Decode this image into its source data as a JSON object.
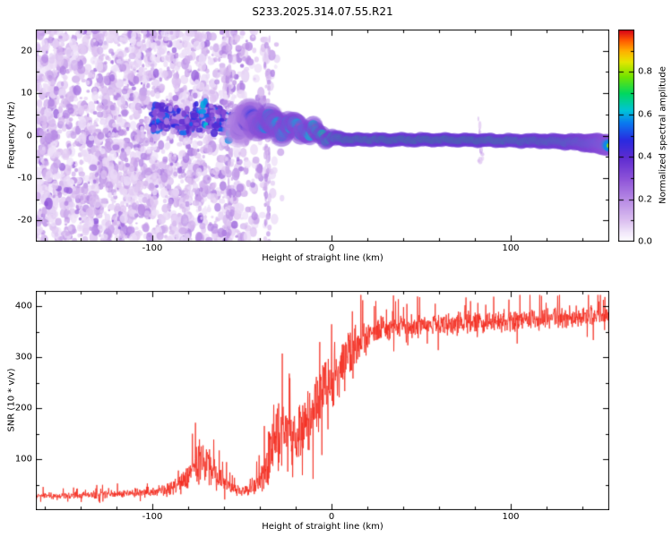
{
  "page": {
    "title": "S233.2025.314.07.55.R21"
  },
  "chart_data": [
    {
      "type": "heatmap",
      "panel": "spectrogram",
      "xlabel": "Height of straight line (km)",
      "ylabel": "Frequency (Hz)",
      "xlim": [
        -165,
        155
      ],
      "ylim": [
        -25,
        25
      ],
      "xticks": [
        -100,
        0,
        100
      ],
      "xtick_labels": [
        "-100",
        "0",
        "100"
      ],
      "yticks": [
        -20,
        -10,
        0,
        10,
        20
      ],
      "ytick_labels": [
        "-20",
        "-10",
        "0",
        "10",
        "20"
      ],
      "colorbar": {
        "label": "Normalized spectral amplitude",
        "range": [
          0,
          1
        ],
        "ticks": [
          0,
          0.2,
          0.4,
          0.6,
          0.8
        ],
        "tick_labels": [
          "0.0",
          "0.2",
          "0.4",
          "0.6",
          "0.8"
        ]
      },
      "colormap_stops": [
        [
          0.0,
          "#ffffff"
        ],
        [
          0.04,
          "#f3eafb"
        ],
        [
          0.1,
          "#dcc0f0"
        ],
        [
          0.2,
          "#b78ae4"
        ],
        [
          0.3,
          "#8d52d8"
        ],
        [
          0.4,
          "#5c2bd0"
        ],
        [
          0.48,
          "#2a2ae0"
        ],
        [
          0.56,
          "#0a78f0"
        ],
        [
          0.62,
          "#00c4d8"
        ],
        [
          0.7,
          "#00d860"
        ],
        [
          0.78,
          "#72e400"
        ],
        [
          0.85,
          "#e6e600"
        ],
        [
          0.9,
          "#ffb000"
        ],
        [
          0.95,
          "#ff5a00"
        ],
        [
          1.0,
          "#d80018"
        ]
      ],
      "noise_field": {
        "x_min": -165,
        "x_max": -25,
        "f_min": -25,
        "f_max": 25,
        "max_amplitude": 0.33
      },
      "streaks": [
        {
          "x": -57,
          "f_min": -25,
          "f_max": 25
        },
        {
          "x": -36,
          "f_min": -25,
          "f_max": 25
        },
        {
          "x": 83,
          "f_min": -6,
          "f_max": 4
        }
      ],
      "ridge": [
        {
          "x": -100,
          "f": 3.5,
          "a": 0.3,
          "w": 3.5
        },
        {
          "x": -90,
          "f": 4.5,
          "a": 0.35,
          "w": 3.4
        },
        {
          "x": -80,
          "f": 3.0,
          "a": 0.4,
          "w": 3.2
        },
        {
          "x": -72,
          "f": 5.0,
          "a": 0.45,
          "w": 3.0
        },
        {
          "x": -65,
          "f": 4.0,
          "a": 0.48,
          "w": 2.8
        },
        {
          "x": -58,
          "f": 2.2,
          "a": 0.44,
          "w": 2.6
        },
        {
          "x": -52,
          "f": 2.6,
          "a": 0.5,
          "w": 2.4
        },
        {
          "x": -46,
          "f": 3.8,
          "a": 0.62,
          "w": 2.2
        },
        {
          "x": -42,
          "f": 3.0,
          "a": 0.72,
          "w": 2.0
        },
        {
          "x": -38,
          "f": 3.4,
          "a": 0.8,
          "w": 1.9
        },
        {
          "x": -33,
          "f": 2.6,
          "a": 0.85,
          "w": 1.8
        },
        {
          "x": -28,
          "f": 2.0,
          "a": 0.83,
          "w": 1.7
        },
        {
          "x": -24,
          "f": 2.4,
          "a": 0.85,
          "w": 1.6
        },
        {
          "x": -20,
          "f": 1.6,
          "a": 0.85,
          "w": 1.5
        },
        {
          "x": -16,
          "f": 1.8,
          "a": 0.83,
          "w": 1.5
        },
        {
          "x": -12,
          "f": 0.9,
          "a": 0.86,
          "w": 1.4
        },
        {
          "x": -8,
          "f": 0.4,
          "a": 0.88,
          "w": 1.3
        },
        {
          "x": -4,
          "f": -0.2,
          "a": 0.9,
          "w": 1.2
        },
        {
          "x": 0,
          "f": -0.6,
          "a": 0.92,
          "w": 1.1
        },
        {
          "x": 10,
          "f": -0.9,
          "a": 0.96,
          "w": 1.0
        },
        {
          "x": 30,
          "f": -1.0,
          "a": 0.97,
          "w": 1.0
        },
        {
          "x": 60,
          "f": -1.0,
          "a": 0.97,
          "w": 1.0
        },
        {
          "x": 85,
          "f": -1.1,
          "a": 0.97,
          "w": 1.0
        },
        {
          "x": 100,
          "f": -1.2,
          "a": 0.96,
          "w": 1.0
        },
        {
          "x": 120,
          "f": -1.3,
          "a": 0.95,
          "w": 1.1
        },
        {
          "x": 135,
          "f": -1.5,
          "a": 0.92,
          "w": 1.2
        },
        {
          "x": 145,
          "f": -1.8,
          "a": 0.88,
          "w": 1.4
        },
        {
          "x": 155,
          "f": -2.2,
          "a": 0.8,
          "w": 1.6
        }
      ]
    },
    {
      "type": "line",
      "panel": "snr",
      "xlabel": "Height of straight line (km)",
      "ylabel": "SNR (10 * v/v)",
      "xlim": [
        -165,
        155
      ],
      "ylim": [
        0,
        430
      ],
      "xticks": [
        -100,
        0,
        100
      ],
      "xtick_labels": [
        "-100",
        "0",
        "100"
      ],
      "yticks": [
        100,
        200,
        300,
        400
      ],
      "ytick_labels": [
        "100",
        "200",
        "300",
        "400"
      ],
      "series": [
        {
          "name": "SNR",
          "color": "#f42a1d",
          "envelope": [
            {
              "x": -165,
              "mean": 28,
              "spread": 8
            },
            {
              "x": -150,
              "mean": 28,
              "spread": 8
            },
            {
              "x": -135,
              "mean": 30,
              "spread": 9
            },
            {
              "x": -120,
              "mean": 32,
              "spread": 10
            },
            {
              "x": -108,
              "mean": 34,
              "spread": 11
            },
            {
              "x": -98,
              "mean": 37,
              "spread": 13
            },
            {
              "x": -90,
              "mean": 42,
              "spread": 18
            },
            {
              "x": -83,
              "mean": 55,
              "spread": 28
            },
            {
              "x": -77,
              "mean": 80,
              "spread": 45
            },
            {
              "x": -73,
              "mean": 100,
              "spread": 55
            },
            {
              "x": -69,
              "mean": 85,
              "spread": 48
            },
            {
              "x": -63,
              "mean": 62,
              "spread": 32
            },
            {
              "x": -57,
              "mean": 46,
              "spread": 18
            },
            {
              "x": -51,
              "mean": 38,
              "spread": 12
            },
            {
              "x": -45,
              "mean": 40,
              "spread": 14
            },
            {
              "x": -40,
              "mean": 55,
              "spread": 30
            },
            {
              "x": -35,
              "mean": 95,
              "spread": 70
            },
            {
              "x": -31,
              "mean": 150,
              "spread": 95
            },
            {
              "x": -27,
              "mean": 150,
              "spread": 85
            },
            {
              "x": -23,
              "mean": 140,
              "spread": 75
            },
            {
              "x": -18,
              "mean": 150,
              "spread": 80
            },
            {
              "x": -13,
              "mean": 175,
              "spread": 85
            },
            {
              "x": -8,
              "mean": 210,
              "spread": 85
            },
            {
              "x": -3,
              "mean": 240,
              "spread": 80
            },
            {
              "x": 2,
              "mean": 265,
              "spread": 75
            },
            {
              "x": 7,
              "mean": 290,
              "spread": 65
            },
            {
              "x": 12,
              "mean": 315,
              "spread": 55
            },
            {
              "x": 17,
              "mean": 335,
              "spread": 45
            },
            {
              "x": 23,
              "mean": 350,
              "spread": 36
            },
            {
              "x": 30,
              "mean": 356,
              "spread": 30
            },
            {
              "x": 45,
              "mean": 360,
              "spread": 28
            },
            {
              "x": 60,
              "mean": 364,
              "spread": 28
            },
            {
              "x": 80,
              "mean": 368,
              "spread": 28
            },
            {
              "x": 100,
              "mean": 372,
              "spread": 28
            },
            {
              "x": 120,
              "mean": 376,
              "spread": 27
            },
            {
              "x": 140,
              "mean": 379,
              "spread": 27
            },
            {
              "x": 155,
              "mean": 381,
              "spread": 27
            }
          ]
        }
      ]
    }
  ]
}
